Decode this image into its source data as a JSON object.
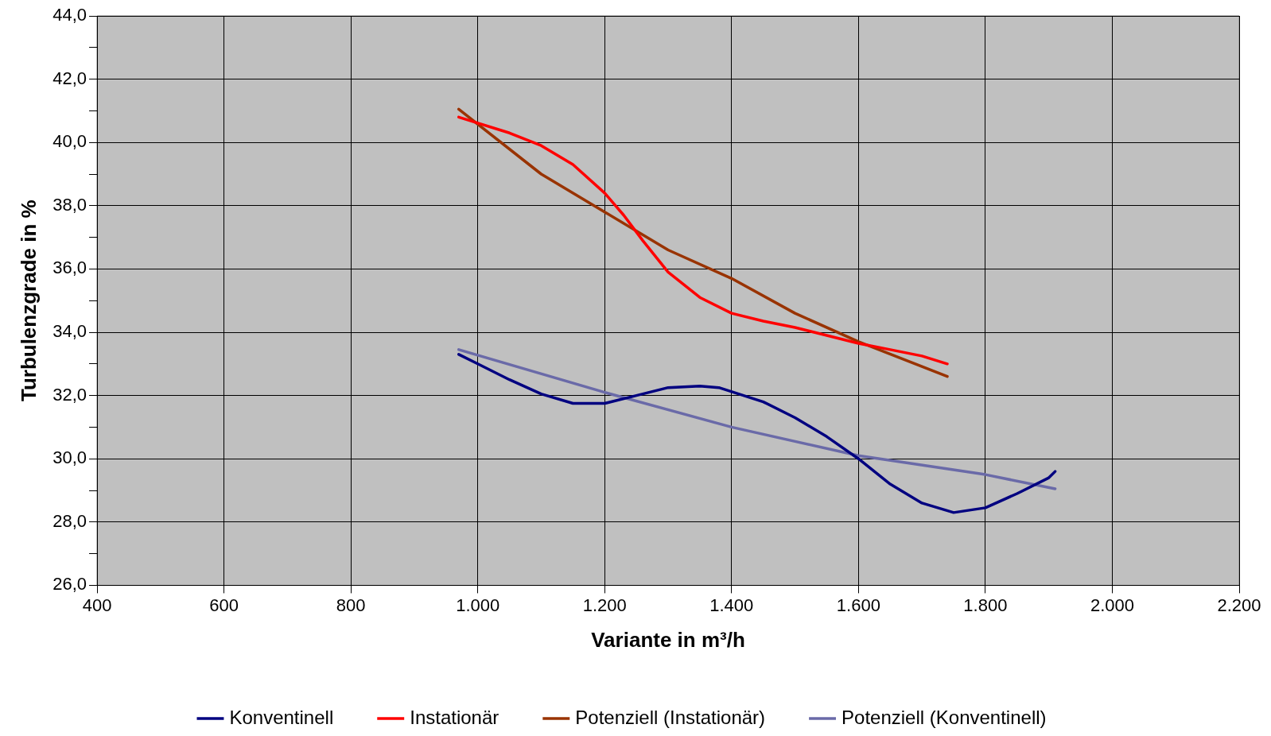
{
  "chart_data": {
    "type": "line",
    "xlabel": "Variante in m³/h",
    "ylabel": "Turbulenzgrade in %",
    "xlim": [
      400,
      2200
    ],
    "xticks": [
      {
        "value": 400,
        "label": "400"
      },
      {
        "value": 600,
        "label": "600"
      },
      {
        "value": 800,
        "label": "800"
      },
      {
        "value": 1000,
        "label": "1.000"
      },
      {
        "value": 1200,
        "label": "1.200"
      },
      {
        "value": 1400,
        "label": "1.400"
      },
      {
        "value": 1600,
        "label": "1.600"
      },
      {
        "value": 1800,
        "label": "1.800"
      },
      {
        "value": 2000,
        "label": "2.000"
      },
      {
        "value": 2200,
        "label": "2.200"
      }
    ],
    "ylim": [
      26,
      44
    ],
    "yticks": [
      {
        "value": 26,
        "label": "26,0"
      },
      {
        "value": 27,
        "label": null
      },
      {
        "value": 28,
        "label": "28,0"
      },
      {
        "value": 29,
        "label": null
      },
      {
        "value": 30,
        "label": "30,0"
      },
      {
        "value": 31,
        "label": null
      },
      {
        "value": 32,
        "label": "32,0"
      },
      {
        "value": 33,
        "label": null
      },
      {
        "value": 34,
        "label": "34,0"
      },
      {
        "value": 35,
        "label": null
      },
      {
        "value": 36,
        "label": "36,0"
      },
      {
        "value": 37,
        "label": null
      },
      {
        "value": 38,
        "label": "38,0"
      },
      {
        "value": 39,
        "label": null
      },
      {
        "value": 40,
        "label": "40,0"
      },
      {
        "value": 41,
        "label": null
      },
      {
        "value": 42,
        "label": "42,0"
      },
      {
        "value": 43,
        "label": null
      },
      {
        "value": 44,
        "label": "44,0"
      }
    ],
    "grid": true,
    "legend": "bottom",
    "marker": "none",
    "line_style": "solid",
    "series": [
      {
        "name": "Konventinell",
        "color": "#000080",
        "x": [
          970,
          1000,
          1050,
          1100,
          1150,
          1200,
          1250,
          1300,
          1350,
          1380,
          1450,
          1500,
          1550,
          1600,
          1650,
          1700,
          1750,
          1800,
          1850,
          1900,
          1910
        ],
        "values": [
          33.3,
          33.0,
          32.5,
          32.05,
          31.75,
          31.75,
          32.0,
          32.25,
          32.3,
          32.25,
          31.8,
          31.3,
          30.7,
          30.0,
          29.2,
          28.6,
          28.3,
          28.45,
          28.9,
          29.4,
          29.6
        ]
      },
      {
        "name": "Instationär",
        "color": "#ff0000",
        "x": [
          970,
          1050,
          1100,
          1150,
          1200,
          1230,
          1260,
          1300,
          1350,
          1400,
          1450,
          1500,
          1550,
          1600,
          1650,
          1700,
          1740
        ],
        "values": [
          40.8,
          40.3,
          39.9,
          39.3,
          38.4,
          37.7,
          36.9,
          35.9,
          35.1,
          34.6,
          34.35,
          34.15,
          33.9,
          33.65,
          33.45,
          33.25,
          33.0
        ]
      },
      {
        "name": "Potenziell (Instationär)",
        "color": "#993300",
        "x": [
          970,
          1100,
          1200,
          1300,
          1400,
          1500,
          1600,
          1740
        ],
        "values": [
          41.05,
          39.0,
          37.8,
          36.6,
          35.7,
          34.6,
          33.7,
          32.6
        ]
      },
      {
        "name": "Potenziell (Konventinell)",
        "color": "#6a6aa8",
        "x": [
          970,
          1200,
          1400,
          1600,
          1800,
          1910
        ],
        "values": [
          33.45,
          32.1,
          31.0,
          30.1,
          29.5,
          29.05
        ]
      }
    ]
  }
}
